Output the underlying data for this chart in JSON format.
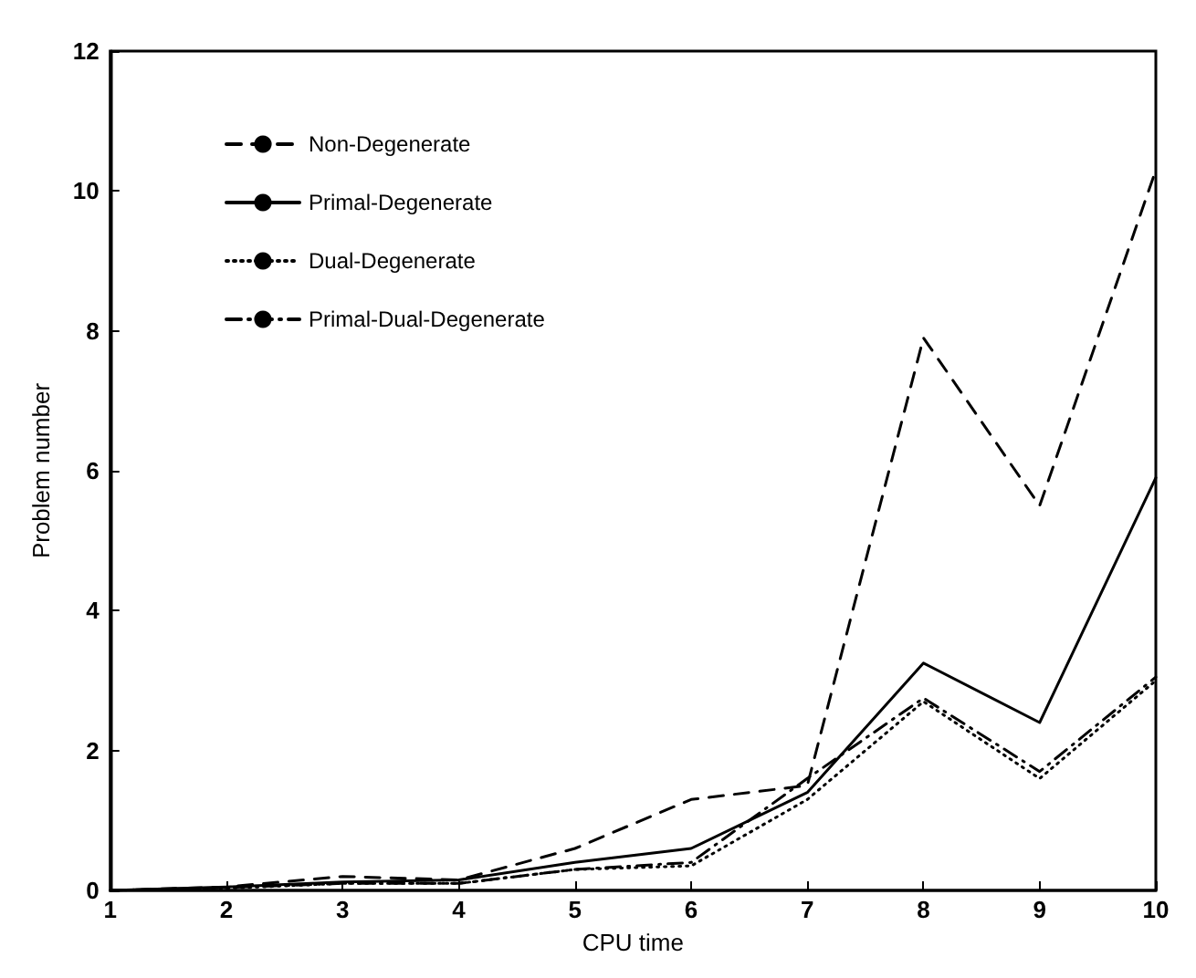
{
  "chart_data": {
    "type": "line",
    "xlabel": "CPU time",
    "ylabel": "Problem number",
    "x": [
      1,
      2,
      3,
      4,
      5,
      6,
      7,
      8,
      9,
      10
    ],
    "series": [
      {
        "name": "Non-Degenerate",
        "color": "#000000",
        "line_style": "dashed",
        "values": [
          0,
          0.05,
          0.2,
          0.15,
          0.6,
          1.3,
          1.5,
          7.9,
          5.5,
          10.3
        ]
      },
      {
        "name": "Primal-Degenerate",
        "color": "#000000",
        "line_style": "solid",
        "values": [
          0,
          0.05,
          0.12,
          0.15,
          0.4,
          0.6,
          1.4,
          3.25,
          2.4,
          5.9
        ]
      },
      {
        "name": "Dual-Degenerate",
        "color": "#000000",
        "line_style": "dotted",
        "values": [
          0,
          0.03,
          0.1,
          0.1,
          0.3,
          0.35,
          1.3,
          2.7,
          1.6,
          3
        ]
      },
      {
        "name": "Primal-Dual-Degenerate",
        "color": "#000000",
        "line_style": "dashdot",
        "values": [
          0,
          0.04,
          0.1,
          0.1,
          0.3,
          0.4,
          1.6,
          2.75,
          1.7,
          3.05
        ]
      }
    ],
    "xlim": [
      1,
      10
    ],
    "xticks": [
      1,
      2,
      3,
      4,
      5,
      6,
      7,
      8,
      9,
      10
    ],
    "ylim": [
      0,
      12
    ],
    "yticks": [
      0,
      2,
      4,
      6,
      8,
      10,
      12
    ],
    "grid": false,
    "legend": "top left",
    "marker": "none"
  }
}
